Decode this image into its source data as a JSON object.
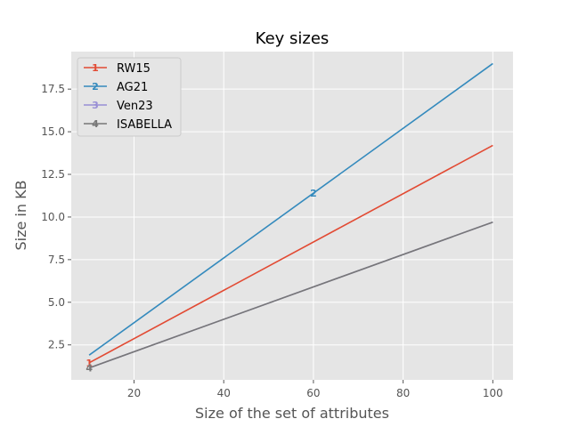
{
  "chart_data": {
    "type": "line",
    "title": "Key sizes",
    "xlabel": "Size of the set of attributes",
    "ylabel": "Size in KB",
    "xlim": [
      6,
      104.5
    ],
    "ylim": [
      0.45,
      19.7
    ],
    "xticks": [
      20,
      40,
      60,
      80,
      100
    ],
    "yticks": [
      2.5,
      5.0,
      7.5,
      10.0,
      12.5,
      15.0,
      17.5
    ],
    "ytick_labels": [
      "2.5",
      "5.0",
      "7.5",
      "10.0",
      "12.5",
      "15.0",
      "17.5"
    ],
    "grid": true,
    "legend_position": "top-left",
    "series": [
      {
        "name": "RW15",
        "marker": "1",
        "color": "#E24A33",
        "x": [
          10,
          100
        ],
        "y": [
          1.45,
          14.2
        ],
        "marker_x": [
          10
        ],
        "marker_y": [
          1.45
        ]
      },
      {
        "name": "AG21",
        "marker": "2",
        "color": "#348ABD",
        "x": [
          10,
          100
        ],
        "y": [
          1.9,
          19.0
        ],
        "marker_x": [
          60
        ],
        "marker_y": [
          11.4
        ]
      },
      {
        "name": "Ven23",
        "marker": "3",
        "color": "#988ED5",
        "x": [
          10,
          100
        ],
        "y": [
          1.15,
          9.7
        ],
        "marker_x": [],
        "marker_y": []
      },
      {
        "name": "ISABELLA",
        "marker": "4",
        "color": "#777777",
        "x": [
          10,
          100
        ],
        "y": [
          1.15,
          9.7
        ],
        "marker_x": [
          10
        ],
        "marker_y": [
          1.15
        ]
      }
    ]
  }
}
